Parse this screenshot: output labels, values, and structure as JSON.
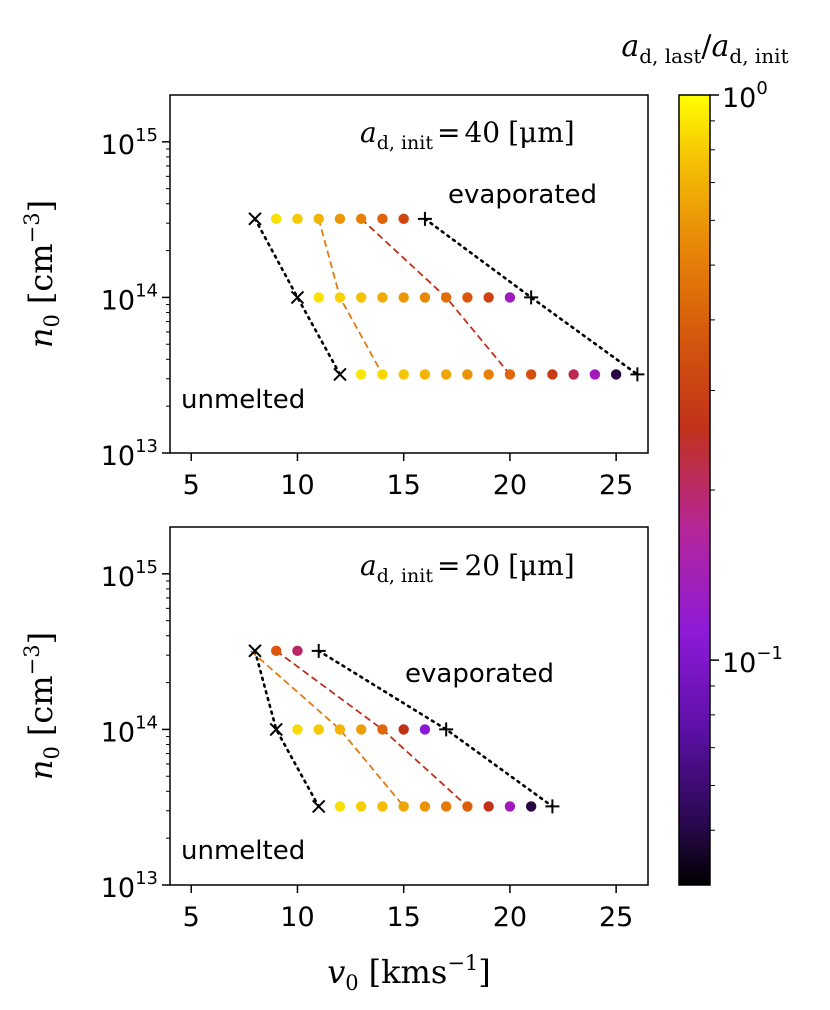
{
  "chart_data": [
    {
      "type": "scatter",
      "panel": "top",
      "annotation": "a_d,init = 40 [μm]",
      "annotation_parts": {
        "var": "a",
        "sub": "d, init",
        "eq": "=",
        "num": "40",
        "unit": "[μm]"
      },
      "xlabel": "",
      "ylabel": "n_0 [cm^-3]",
      "ylabel_parts": {
        "var": "n",
        "sub": "0",
        "unit": "[cm",
        "exp": "−3",
        "close": "]"
      },
      "xlim": [
        4,
        26.5
      ],
      "ylim": [
        10000000000000.0,
        2000000000000000.0
      ],
      "yscale": "log",
      "xticks": [
        "5",
        "10",
        "15",
        "20",
        "25"
      ],
      "yticks": [
        {
          "value": 10000000000000.0,
          "base": "10",
          "exp": "13"
        },
        {
          "value": 100000000000000.0,
          "base": "10",
          "exp": "14"
        },
        {
          "value": 1000000000000000.0,
          "base": "10",
          "exp": "15"
        }
      ],
      "region_labels": {
        "evaporated": "evaporated",
        "unmelted": "unmelted"
      },
      "points": [
        {
          "n0": 320000000000000.0,
          "x": [
            9,
            10,
            11,
            12,
            13,
            14,
            15
          ],
          "ratio": [
            0.82,
            0.72,
            0.62,
            0.5,
            0.42,
            0.33,
            0.25
          ]
        },
        {
          "n0": 100000000000000.0,
          "x": [
            11,
            12,
            13,
            14,
            15,
            16,
            17,
            18,
            19,
            20
          ],
          "ratio": [
            0.82,
            0.75,
            0.68,
            0.58,
            0.5,
            0.44,
            0.36,
            0.3,
            0.24,
            0.11
          ]
        },
        {
          "n0": 32000000000000.0,
          "x": [
            13,
            14,
            15,
            16,
            17,
            18,
            19,
            20,
            21,
            22,
            23,
            24,
            25
          ],
          "ratio": [
            0.85,
            0.78,
            0.7,
            0.62,
            0.55,
            0.48,
            0.42,
            0.34,
            0.28,
            0.22,
            0.17,
            0.11,
            0.05
          ]
        }
      ],
      "unmelted_boundary": [
        [
          8,
          320000000000000.0
        ],
        [
          10,
          100000000000000.0
        ],
        [
          12,
          32000000000000.0
        ]
      ],
      "evaporated_boundary": [
        [
          16,
          320000000000000.0
        ],
        [
          21,
          100000000000000.0
        ],
        [
          26,
          32000000000000.0
        ]
      ],
      "contours": [
        {
          "color": "#e07a12",
          "points": [
            [
              11,
              320000000000000.0
            ],
            [
              12,
              100000000000000.0
            ],
            [
              14,
              32000000000000.0
            ]
          ]
        },
        {
          "color": "#c0301a",
          "points": [
            [
              13,
              320000000000000.0
            ],
            [
              17,
              100000000000000.0
            ],
            [
              20,
              32000000000000.0
            ]
          ]
        }
      ]
    },
    {
      "type": "scatter",
      "panel": "bottom",
      "annotation": "a_d,init = 20 [μm]",
      "annotation_parts": {
        "var": "a",
        "sub": "d, init",
        "eq": "=",
        "num": "20",
        "unit": "[μm]"
      },
      "xlabel": "v_0 [kms^-1]",
      "xlabel_parts": {
        "var": "v",
        "sub": "0",
        "unit": "[kms",
        "exp": "−1",
        "close": "]"
      },
      "ylabel": "n_0 [cm^-3]",
      "ylabel_parts": {
        "var": "n",
        "sub": "0",
        "unit": "[cm",
        "exp": "−3",
        "close": "]"
      },
      "xlim": [
        4,
        26.5
      ],
      "ylim": [
        10000000000000.0,
        2000000000000000.0
      ],
      "yscale": "log",
      "xticks": [
        "5",
        "10",
        "15",
        "20",
        "25"
      ],
      "yticks": [
        {
          "value": 10000000000000.0,
          "base": "10",
          "exp": "13"
        },
        {
          "value": 100000000000000.0,
          "base": "10",
          "exp": "14"
        },
        {
          "value": 1000000000000000.0,
          "base": "10",
          "exp": "15"
        }
      ],
      "region_labels": {
        "evaporated": "evaporated",
        "unmelted": "unmelted"
      },
      "points": [
        {
          "n0": 320000000000000.0,
          "x": [
            9,
            10
          ],
          "ratio": [
            0.3,
            0.16
          ]
        },
        {
          "n0": 100000000000000.0,
          "x": [
            10,
            11,
            12,
            13,
            14,
            15,
            16
          ],
          "ratio": [
            0.8,
            0.72,
            0.62,
            0.52,
            0.34,
            0.2,
            0.09
          ]
        },
        {
          "n0": 32000000000000.0,
          "x": [
            12,
            13,
            14,
            15,
            16,
            17,
            18,
            19,
            20,
            21
          ],
          "ratio": [
            0.82,
            0.74,
            0.66,
            0.55,
            0.48,
            0.4,
            0.32,
            0.2,
            0.11,
            0.05
          ]
        }
      ],
      "unmelted_boundary": [
        [
          8,
          320000000000000.0
        ],
        [
          9,
          100000000000000.0
        ],
        [
          11,
          32000000000000.0
        ]
      ],
      "evaporated_boundary": [
        [
          11,
          320000000000000.0
        ],
        [
          17,
          100000000000000.0
        ],
        [
          22,
          32000000000000.0
        ]
      ],
      "contours": [
        {
          "color": "#e07a12",
          "points": [
            [
              7.8,
              320000000000000.0
            ],
            [
              12,
              100000000000000.0
            ],
            [
              15,
              32000000000000.0
            ]
          ]
        },
        {
          "color": "#c0301a",
          "points": [
            [
              9,
              320000000000000.0
            ],
            [
              14,
              100000000000000.0
            ],
            [
              18,
              32000000000000.0
            ]
          ]
        }
      ]
    }
  ],
  "colorbar": {
    "label": "a_d,last/a_d,init",
    "label_parts": {
      "var1": "a",
      "sub1": "d, last",
      "slash": "/",
      "var2": "a",
      "sub2": "d, init"
    },
    "colormap": "gnuplot",
    "scale": "log",
    "range": [
      0.04,
      1.0
    ],
    "ticks": [
      {
        "value": 1,
        "base": "10",
        "exp": "0"
      },
      {
        "value": 0.1,
        "base": "10",
        "exp": "−1"
      }
    ],
    "colors": [
      "#000000",
      "#4a0a7a",
      "#8a18d8",
      "#b41aa0",
      "#c23218",
      "#d9560c",
      "#e88a08",
      "#f4be04",
      "#ffff00"
    ]
  }
}
